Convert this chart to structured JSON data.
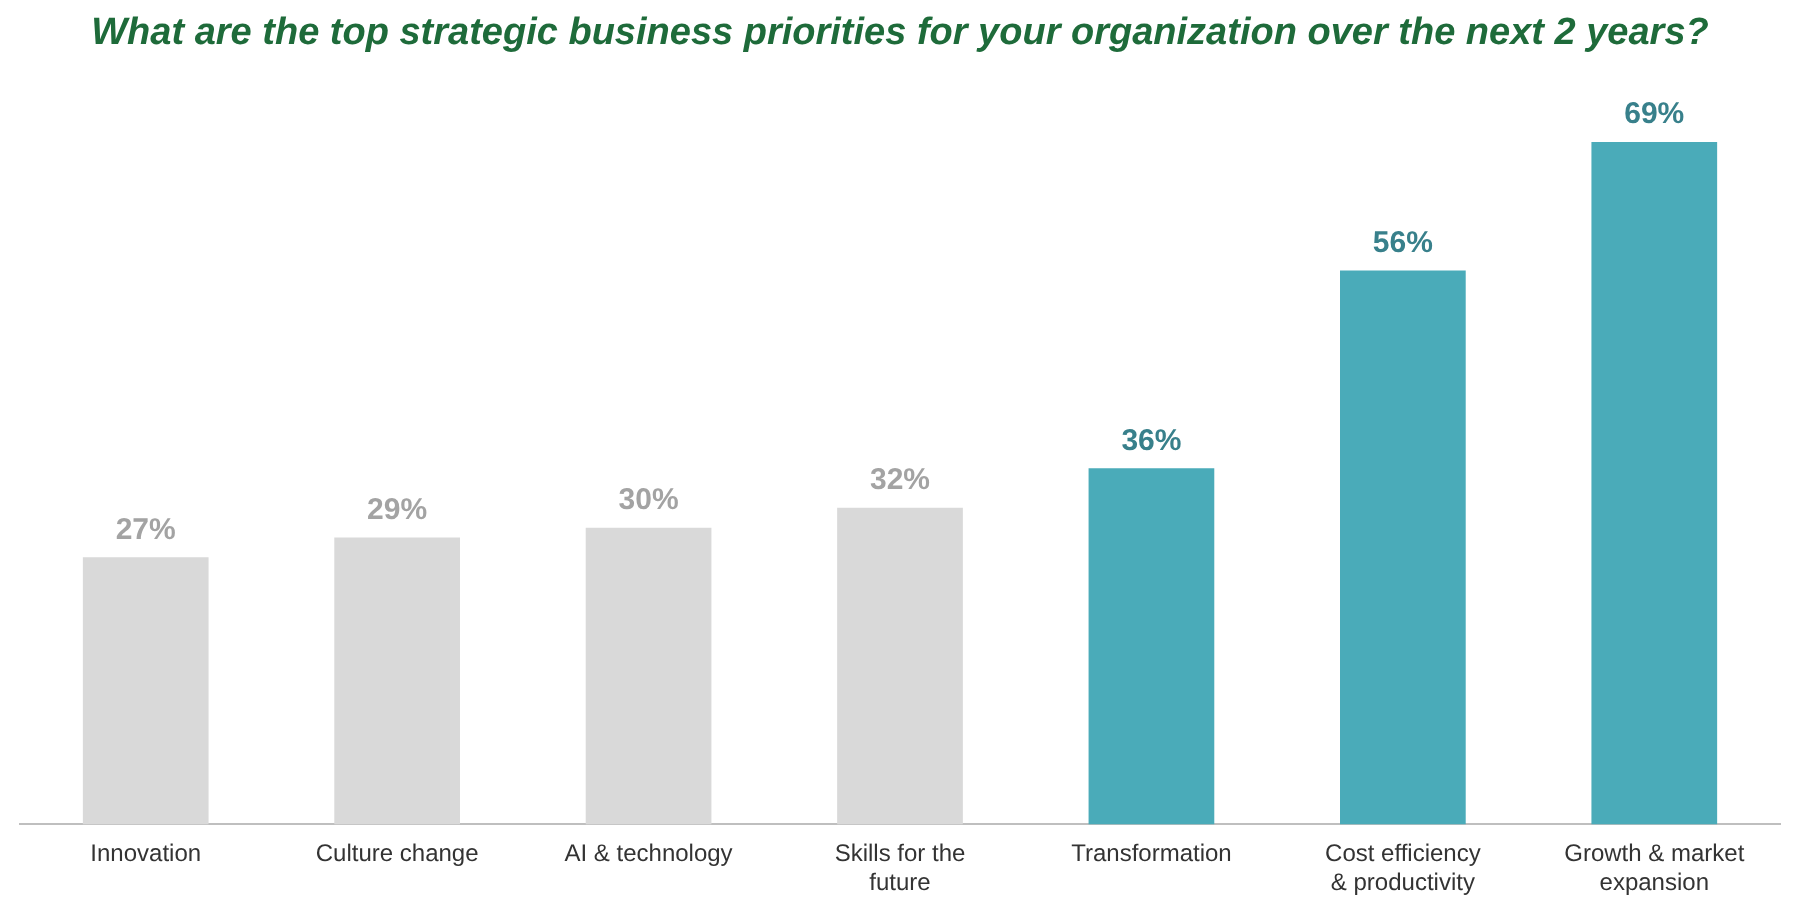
{
  "chart_data": {
    "type": "bar",
    "title": "What are the top strategic business priorities for your organization over the next 2 years?",
    "categories": [
      "Innovation",
      "Culture change",
      "AI & technology",
      "Skills for the future",
      "Transformation",
      "Cost efficiency & productivity",
      "Growth & market expansion"
    ],
    "values": [
      27,
      29,
      30,
      32,
      36,
      56,
      69
    ],
    "colors": [
      "#d9d9d9",
      "#d9d9d9",
      "#d9d9d9",
      "#d9d9d9",
      "#4aabb9",
      "#4aabb9",
      "#4aabb9"
    ],
    "value_labels": [
      "27%",
      "29%",
      "30%",
      "32%",
      "36%",
      "56%",
      "69%"
    ],
    "grid": false,
    "legend": false,
    "tick_labels": "x"
  }
}
